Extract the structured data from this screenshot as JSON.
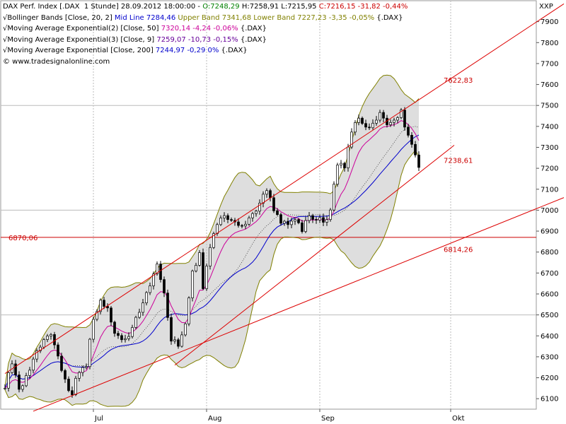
{
  "chart_data": {
    "type": "line",
    "symbol": "XXP",
    "y_axis": {
      "min": 6050,
      "max": 8000,
      "ticks": [
        6100,
        6200,
        6300,
        6400,
        6500,
        6600,
        6700,
        6800,
        6900,
        7000,
        7100,
        7200,
        7300,
        7400,
        7500,
        7600,
        7700,
        7800,
        7900
      ]
    },
    "x_axis": {
      "labels": [
        {
          "label": "Jul",
          "bar": 25
        },
        {
          "label": "Aug",
          "bar": 57
        },
        {
          "label": "Sep",
          "bar": 89
        },
        {
          "label": "Okt",
          "bar": 126
        }
      ],
      "bar_count": 158
    },
    "legend": [
      [
        {
          "text": "DAX Perf. Index [.DAX  1 Stunde] 28.09.2012 18:00:00 - ",
          "color": "#000000"
        },
        {
          "text": "O:7248,29",
          "color": "#008000"
        },
        {
          "text": " H:7258,91 L:7215,95 ",
          "color": "#000000"
        },
        {
          "text": "C:7216,15 -31,82 -0,44%",
          "color": "#cc0000"
        }
      ],
      [
        {
          "text": "Bollinger Bands [Close, 20, 2] ",
          "color": "#000000"
        },
        {
          "text": "Mid Line 7284,46",
          "color": "#0000cc"
        },
        {
          "text": " Upper Band 7341,68 Lower Band 7227,23 -3,35 -0,05%",
          "color": "#808000"
        },
        {
          "text": " {.DAX}",
          "color": "#000000"
        }
      ],
      [
        {
          "text": "Moving Average Exponential(2) [Close, 50] ",
          "color": "#000000"
        },
        {
          "text": "7320,14 -4,24 -0,06%",
          "color": "#cc0099"
        },
        {
          "text": " {.DAX}",
          "color": "#000000"
        }
      ],
      [
        {
          "text": "Moving Average Exponential(3) [Close, 9] ",
          "color": "#000000"
        },
        {
          "text": "7259,07 -10,73 -0,15%",
          "color": "#660099"
        },
        {
          "text": " {.DAX}",
          "color": "#000000"
        }
      ],
      [
        {
          "text": "Moving Average Exponential [Close, 200] ",
          "color": "#000000"
        },
        {
          "text": "7244,97 -0,29 0%",
          "color": "#0000cc"
        },
        {
          "text": " {.DAX}",
          "color": "#000000"
        }
      ],
      [
        {
          "text": "© www.tradesignalonline.com",
          "color": "#000000"
        }
      ]
    ],
    "annotations": [
      {
        "text": "7622,83",
        "bar": 124,
        "y": 7622.83
      },
      {
        "text": "7238,61",
        "bar": 124,
        "y": 7238.61
      },
      {
        "text": "6814,26",
        "bar": 124,
        "y": 6814.26
      },
      {
        "text": "6870,06",
        "bar": 1,
        "y": 6870.06
      }
    ],
    "horizontal_lines": [
      {
        "y": 6870.06,
        "color": "#cc0000"
      },
      {
        "y": 7500,
        "color": "#bbbbbb"
      },
      {
        "y": 7000,
        "color": "#bbbbbb"
      },
      {
        "y": 6500,
        "color": "#bbbbbb"
      }
    ],
    "trend_lines": [
      {
        "name": "channel-upper",
        "x1": 0,
        "y1": 6220,
        "x2": 158,
        "y2": 7985,
        "color": "#dd0000"
      },
      {
        "name": "channel-lower",
        "x1": 8,
        "y1": 6040,
        "x2": 158,
        "y2": 7060,
        "color": "#dd0000"
      },
      {
        "name": "fan-steep",
        "x1": 48,
        "y1": 6260,
        "x2": 127,
        "y2": 7310,
        "color": "#dd0000"
      }
    ],
    "price_anchors": [
      [
        0,
        6160
      ],
      [
        2,
        6270
      ],
      [
        4,
        6130
      ],
      [
        6,
        6200
      ],
      [
        8,
        6290
      ],
      [
        11,
        6380
      ],
      [
        13,
        6420
      ],
      [
        15,
        6290
      ],
      [
        17,
        6180
      ],
      [
        19,
        6120
      ],
      [
        20,
        6190
      ],
      [
        23,
        6260
      ],
      [
        25,
        6480
      ],
      [
        27,
        6560
      ],
      [
        29,
        6540
      ],
      [
        31,
        6420
      ],
      [
        33,
        6370
      ],
      [
        35,
        6410
      ],
      [
        37,
        6490
      ],
      [
        39,
        6560
      ],
      [
        41,
        6640
      ],
      [
        43,
        6740
      ],
      [
        45,
        6590
      ],
      [
        47,
        6380
      ],
      [
        49,
        6360
      ],
      [
        51,
        6460
      ],
      [
        53,
        6700
      ],
      [
        55,
        6790
      ],
      [
        56,
        6620
      ],
      [
        58,
        6820
      ],
      [
        60,
        6940
      ],
      [
        62,
        6970
      ],
      [
        65,
        6940
      ],
      [
        68,
        6920
      ],
      [
        70,
        6980
      ],
      [
        72,
        7040
      ],
      [
        74,
        7090
      ],
      [
        76,
        7010
      ],
      [
        78,
        6950
      ],
      [
        80,
        6920
      ],
      [
        82,
        6950
      ],
      [
        84,
        6910
      ],
      [
        86,
        6970
      ],
      [
        88,
        6960
      ],
      [
        90,
        6940
      ],
      [
        92,
        7000
      ],
      [
        94,
        7220
      ],
      [
        96,
        7210
      ],
      [
        98,
        7380
      ],
      [
        100,
        7430
      ],
      [
        102,
        7390
      ],
      [
        104,
        7420
      ],
      [
        106,
        7460
      ],
      [
        108,
        7400
      ],
      [
        110,
        7420
      ],
      [
        112,
        7470
      ],
      [
        113,
        7390
      ],
      [
        115,
        7320
      ],
      [
        116,
        7250
      ],
      [
        117,
        7216
      ]
    ],
    "series": [
      {
        "name": "Mid Line",
        "color": "#0000cc"
      },
      {
        "name": "Upper Band",
        "color": "#808000"
      },
      {
        "name": "Lower Band",
        "color": "#808000"
      },
      {
        "name": "Moving Average Exponential(2) [Close, 50]",
        "color": "#cc0099"
      },
      {
        "name": "Moving Average Exponential(3) [Close, 9]",
        "color": "#660099"
      },
      {
        "name": "Moving Average Exponential [Close, 200]",
        "color": "#0000cc"
      }
    ],
    "colors": {
      "up_candle": "#ffffff",
      "down_candle": "#000000",
      "band_fill": "#d8d8d8",
      "band_edge": "#808000"
    }
  }
}
